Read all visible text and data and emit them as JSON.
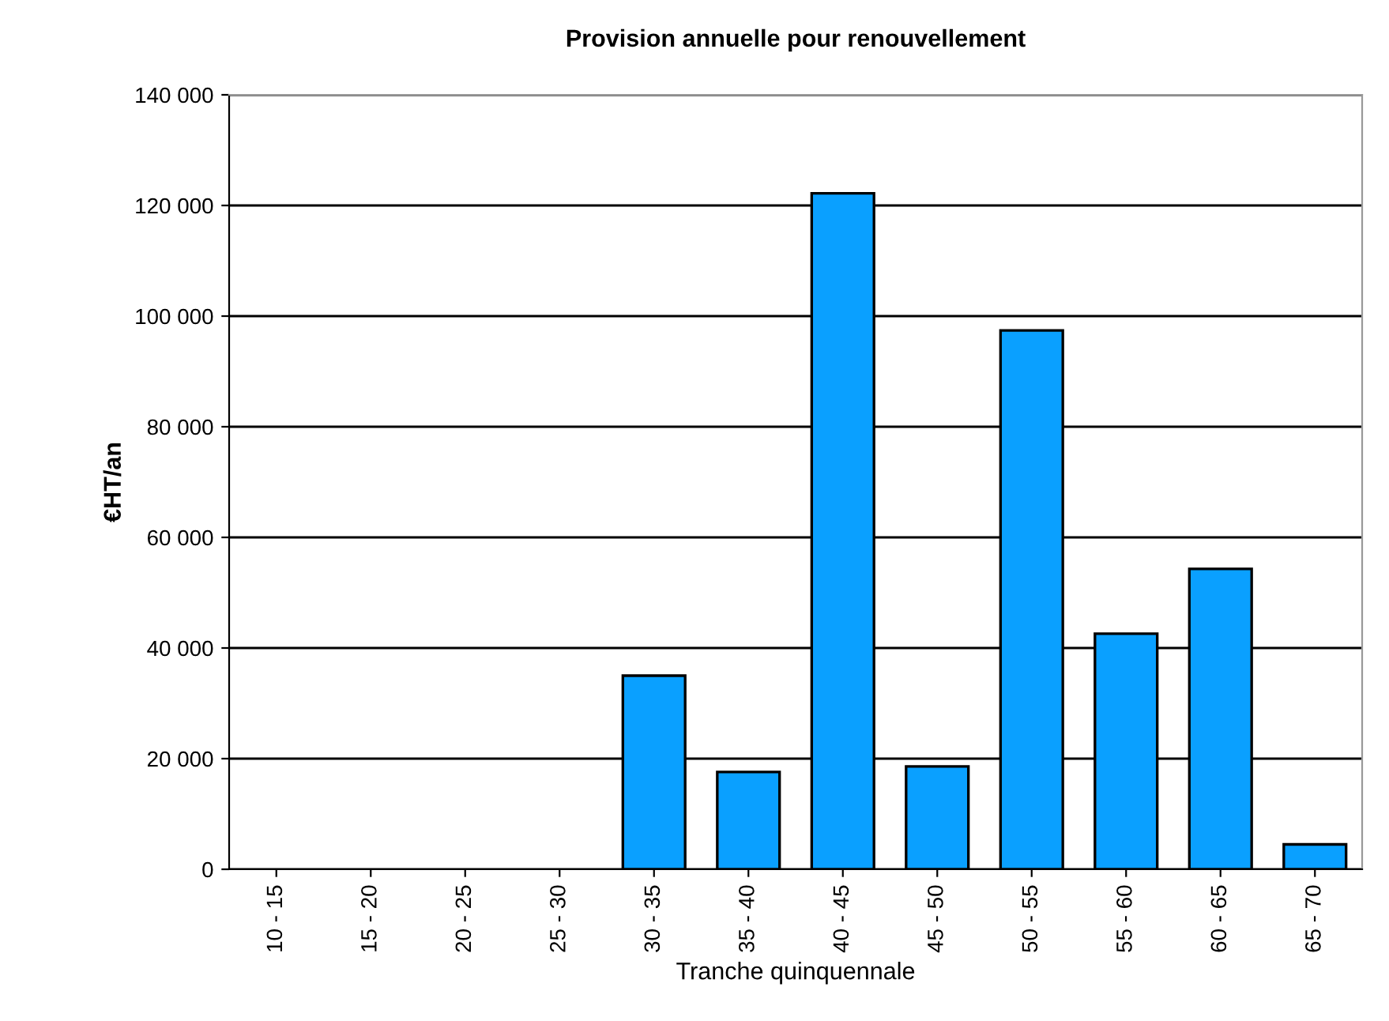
{
  "chart_data": {
    "type": "bar",
    "title": "Provision annuelle pour renouvellement",
    "xlabel": "Tranche quinquennale",
    "ylabel": "€HT/an",
    "categories": [
      "10 - 15",
      "15 - 20",
      "20 - 25",
      "25 - 30",
      "30 - 35",
      "35 - 40",
      "40 - 45",
      "45 - 50",
      "50 - 55",
      "55 - 60",
      "60 - 65",
      "65 - 70"
    ],
    "values": [
      null,
      null,
      null,
      null,
      35000,
      17600,
      122200,
      18600,
      97400,
      42600,
      54300,
      4500
    ],
    "color": "#0aa0ff",
    "ylim": [
      0,
      140000
    ],
    "yticks": [
      {
        "value": 0,
        "label": "0"
      },
      {
        "value": 20000,
        "label": "20 000"
      },
      {
        "value": 40000,
        "label": "40 000"
      },
      {
        "value": 60000,
        "label": "60 000"
      },
      {
        "value": 80000,
        "label": "80 000"
      },
      {
        "value": 100000,
        "label": "100 000"
      },
      {
        "value": 120000,
        "label": "120 000"
      },
      {
        "value": 140000,
        "label": "140 000"
      }
    ],
    "grid": "y"
  }
}
